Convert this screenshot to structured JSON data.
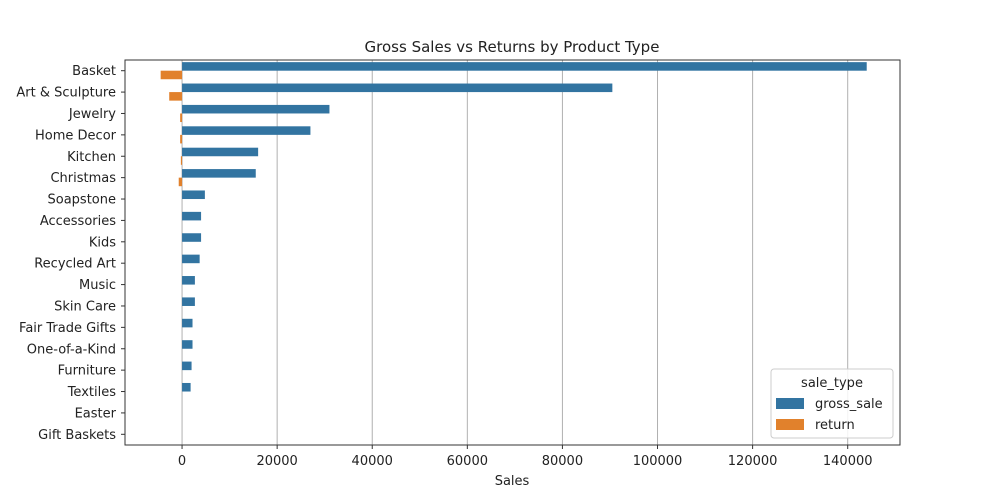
{
  "chart_data": {
    "type": "bar",
    "orientation": "horizontal",
    "title": "Gross Sales vs Returns by Product Type",
    "xlabel": "Sales",
    "ylabel": "",
    "xlim": [
      -12000,
      151000
    ],
    "xticks": [
      0,
      20000,
      40000,
      60000,
      80000,
      100000,
      120000,
      140000
    ],
    "xtick_labels": [
      "0",
      "20000",
      "40000",
      "60000",
      "80000",
      "100000",
      "120000",
      "140000"
    ],
    "grid": "x",
    "categories": [
      "Basket",
      "Art & Sculpture",
      "Jewelry",
      "Home Decor",
      "Kitchen",
      "Christmas",
      "Soapstone",
      "Accessories",
      "Kids",
      "Recycled Art",
      "Music",
      "Skin Care",
      "Fair Trade Gifts",
      "One-of-a-Kind",
      "Furniture",
      "Textiles",
      "Easter",
      "Gift Baskets"
    ],
    "legend": {
      "title": "sale_type",
      "position": "bottom-right"
    },
    "series": [
      {
        "name": "gross_sale",
        "color": "#3274a1",
        "values": [
          144000,
          90500,
          31000,
          27000,
          16000,
          15500,
          4800,
          4000,
          4000,
          3700,
          2700,
          2700,
          2200,
          2200,
          2000,
          1800,
          0,
          0
        ]
      },
      {
        "name": "return",
        "color": "#e1812c",
        "values": [
          -4500,
          -2700,
          -400,
          -400,
          -250,
          -700,
          0,
          0,
          0,
          0,
          0,
          0,
          0,
          0,
          0,
          0,
          0,
          0
        ]
      }
    ]
  }
}
